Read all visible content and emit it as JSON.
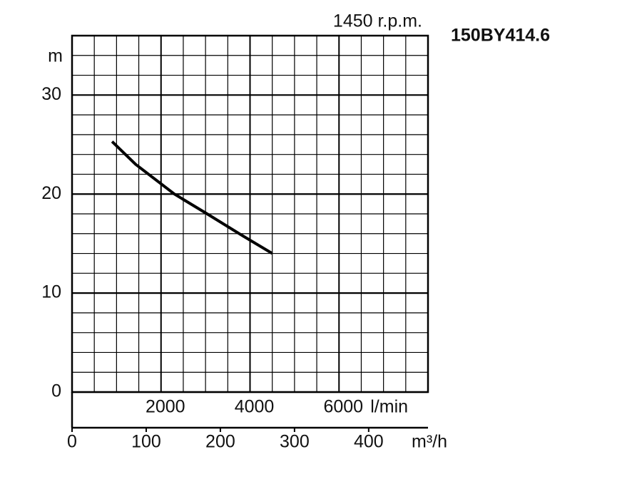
{
  "chart_data": {
    "type": "line",
    "title": "150BY414.6",
    "subtitle": "1450 r.p.m.",
    "y_label": "m",
    "x_label": "l/min",
    "x2_label": "m³/h",
    "x": [
      900,
      1430,
      2300,
      3000,
      3830,
      4500
    ],
    "series": [
      {
        "color": "#000000",
        "values": [
          25.3,
          23.0,
          20.0,
          18.1,
          15.8,
          14.0
        ]
      }
    ],
    "xlim": [
      0,
      8000
    ],
    "xticks": [
      2000,
      4000,
      6000
    ],
    "xminorticks": [
      500,
      1000,
      1500,
      2000,
      2500,
      3000,
      3500,
      4000,
      4500,
      5000,
      5500,
      6000,
      6500,
      7000,
      7500
    ],
    "ylim": [
      0,
      36
    ],
    "yticks": [
      0,
      10,
      20,
      30
    ],
    "yminorticks": [
      2,
      4,
      6,
      8,
      12,
      14,
      16,
      18,
      22,
      24,
      26,
      28,
      32,
      34
    ],
    "x2lim": [
      0,
      480
    ],
    "x2ticks": [
      0,
      100,
      200,
      300,
      400
    ],
    "grid": true
  }
}
